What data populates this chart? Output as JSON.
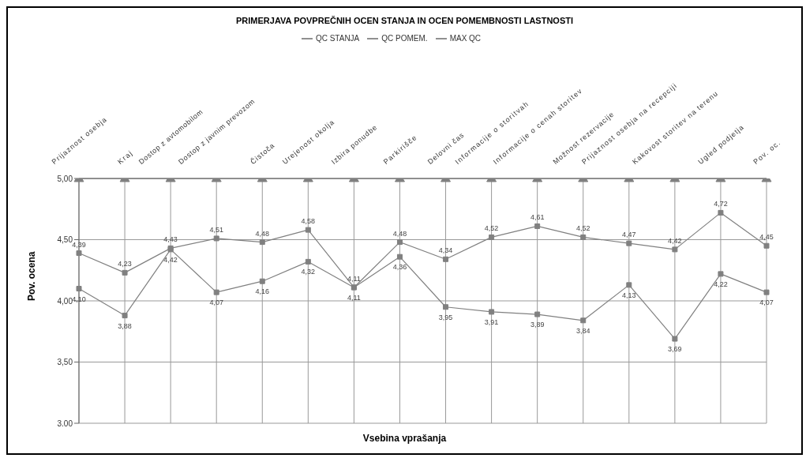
{
  "chart_data": {
    "type": "line",
    "title": "PRIMERJAVA POVPREČNIH OCEN STANJA IN OCEN POMEMBNOSTI LASTNOSTI",
    "xlabel": "Vsebina vprašanja",
    "ylabel": "Pov. ocena",
    "categories": [
      "Prijaznost osebja",
      "Kraj",
      "Dostop z avtomobilom",
      "Dostop z javnim prevozom",
      "Čistoča",
      "Urejenost okolja",
      "Izbira ponudbe",
      "Parkirišče",
      "Delovni čas",
      "Informacije o storitvah",
      "Informacije o cenah storitev",
      "Možnost rezervacije",
      "Prijaznost osebja na recepciji",
      "Kakovost storitev na terenu",
      "Ugled podjetja",
      "Pov. oc."
    ],
    "series": [
      {
        "name": "QC STANJA",
        "color": "#808080",
        "marker": "square",
        "values": [
          4.1,
          3.88,
          4.42,
          4.07,
          4.16,
          4.32,
          4.11,
          4.36,
          3.95,
          3.91,
          3.89,
          3.84,
          4.13,
          3.69,
          4.22,
          4.07
        ],
        "value_labels": [
          "4,10",
          "3,88",
          "4,42",
          "4,07",
          "4,16",
          "4,32",
          "4,11",
          "4,36",
          "3,95",
          "3,91",
          "3,89",
          "3,84",
          "4,13",
          "3,69",
          "4,22",
          "4,07"
        ]
      },
      {
        "name": "QC POMEM.",
        "color": "#808080",
        "marker": "square",
        "values": [
          4.39,
          4.23,
          4.43,
          4.51,
          4.48,
          4.58,
          4.11,
          4.48,
          4.34,
          4.52,
          4.61,
          4.52,
          4.47,
          4.42,
          4.72,
          4.45
        ],
        "value_labels": [
          "4,39",
          "4,23",
          "4,43",
          "4,51",
          "4,48",
          "4,58",
          "4,11",
          "4,48",
          "4,34",
          "4,52",
          "4,61",
          "4,52",
          "4,47",
          "4,42",
          "4,72",
          "4,45"
        ]
      },
      {
        "name": "MAX QC",
        "color": "#808080",
        "marker": "triangle",
        "values": [
          5,
          5,
          5,
          5,
          5,
          5,
          5,
          5,
          5,
          5,
          5,
          5,
          5,
          5,
          5,
          5
        ]
      }
    ],
    "ylim": [
      3,
      5
    ],
    "yticks": [
      {
        "value": 3,
        "label": "3,00"
      },
      {
        "value": 3.5,
        "label": "3,50"
      },
      {
        "value": 4,
        "label": "4,00"
      },
      {
        "value": 4.5,
        "label": "4,50"
      },
      {
        "value": 5,
        "label": "5,00"
      }
    ],
    "grid": true,
    "legend": "top"
  }
}
